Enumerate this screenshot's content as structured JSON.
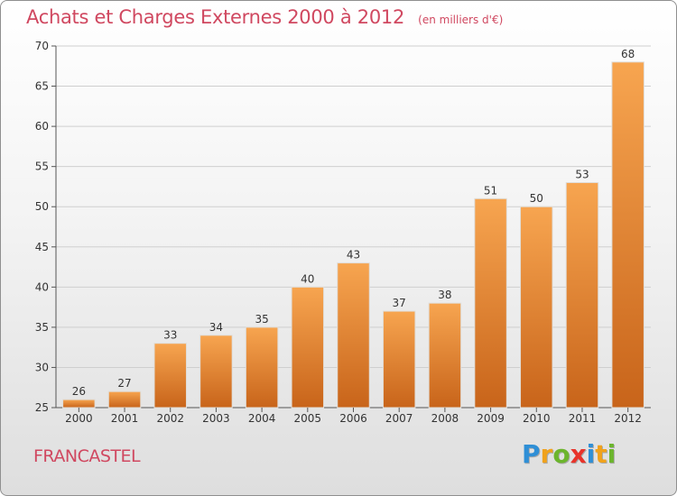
{
  "chart_data": {
    "type": "bar",
    "title": "Achats et Charges Externes 2000 à 2012",
    "unit_label": "(en milliers d'€)",
    "categories": [
      "2000",
      "2001",
      "2002",
      "2003",
      "2004",
      "2005",
      "2006",
      "2007",
      "2008",
      "2009",
      "2010",
      "2011",
      "2012"
    ],
    "values": [
      26,
      27,
      33,
      34,
      35,
      40,
      43,
      37,
      38,
      51,
      50,
      53,
      68
    ],
    "ylim": [
      25,
      70
    ],
    "yticks": [
      25,
      30,
      35,
      40,
      45,
      50,
      55,
      60,
      65,
      70
    ],
    "grid": true,
    "legend": "none",
    "xlabel": "",
    "ylabel": "",
    "bar_color_top": "#f7a550",
    "bar_color_bottom": "#c8641a",
    "grid_color": "#cfcfcf"
  },
  "footer": {
    "commune": "FRANCASTEL",
    "brand_letters": [
      {
        "ch": "P",
        "color": "#2f8fd6"
      },
      {
        "ch": "r",
        "color": "#f0a21c"
      },
      {
        "ch": "o",
        "color": "#6cb52d"
      },
      {
        "ch": "x",
        "color": "#e8332a"
      },
      {
        "ch": "i",
        "color": "#2f8fd6"
      },
      {
        "ch": "t",
        "color": "#f0a21c"
      },
      {
        "ch": "i",
        "color": "#6cb52d"
      }
    ]
  },
  "colors": {
    "title": "#d04860",
    "axis_text": "#333333"
  }
}
